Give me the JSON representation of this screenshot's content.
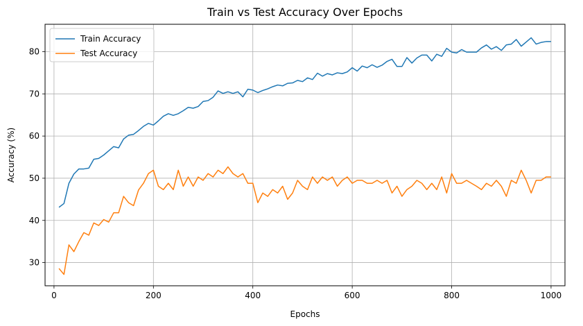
{
  "chart_data": {
    "type": "line",
    "title": "Train vs Test Accuracy Over Epochs",
    "xlabel": "Epochs",
    "ylabel": "Accuracy (%)",
    "xlim": [
      -18,
      1028
    ],
    "ylim": [
      24.5,
      86.5
    ],
    "xticks": [
      0,
      200,
      400,
      600,
      800,
      1000
    ],
    "yticks": [
      30,
      40,
      50,
      60,
      70,
      80
    ],
    "grid": true,
    "legend_position": "upper-left",
    "x": [
      10,
      20,
      30,
      40,
      50,
      60,
      70,
      80,
      90,
      100,
      110,
      120,
      130,
      140,
      150,
      160,
      170,
      180,
      190,
      200,
      210,
      220,
      230,
      240,
      250,
      260,
      270,
      280,
      290,
      300,
      310,
      320,
      330,
      340,
      350,
      360,
      370,
      380,
      390,
      400,
      410,
      420,
      430,
      440,
      450,
      460,
      470,
      480,
      490,
      500,
      510,
      520,
      530,
      540,
      550,
      560,
      570,
      580,
      590,
      600,
      610,
      620,
      630,
      640,
      650,
      660,
      670,
      680,
      690,
      700,
      710,
      720,
      730,
      740,
      750,
      760,
      770,
      780,
      790,
      800,
      810,
      820,
      830,
      840,
      850,
      860,
      870,
      880,
      890,
      900,
      910,
      920,
      930,
      940,
      950,
      960,
      970,
      980,
      990,
      1000
    ],
    "series": [
      {
        "name": "Train Accuracy",
        "color": "#1f77b4",
        "values": [
          43.1,
          44.0,
          48.8,
          51.0,
          52.2,
          52.2,
          52.4,
          54.5,
          54.7,
          55.5,
          56.5,
          57.5,
          57.2,
          59.3,
          60.2,
          60.4,
          61.3,
          62.3,
          63.0,
          62.6,
          63.6,
          64.7,
          65.3,
          64.9,
          65.3,
          66.0,
          66.8,
          66.6,
          67.0,
          68.2,
          68.4,
          69.2,
          70.7,
          70.1,
          70.5,
          70.1,
          70.5,
          69.3,
          71.1,
          70.9,
          70.3,
          70.8,
          71.2,
          71.7,
          72.1,
          71.9,
          72.5,
          72.6,
          73.2,
          72.9,
          73.8,
          73.4,
          74.9,
          74.2,
          74.8,
          74.5,
          75.0,
          74.8,
          75.2,
          76.2,
          75.4,
          76.6,
          76.2,
          76.9,
          76.3,
          76.8,
          77.7,
          78.2,
          76.5,
          76.5,
          78.6,
          77.3,
          78.5,
          79.2,
          79.2,
          77.8,
          79.4,
          78.9,
          80.8,
          79.9,
          79.7,
          80.5,
          79.9,
          79.9,
          79.9,
          80.9,
          81.6,
          80.6,
          81.2,
          80.3,
          81.6,
          81.8,
          82.9,
          81.3,
          82.3,
          83.3,
          81.8,
          82.2,
          82.4,
          82.4
        ]
      },
      {
        "name": "Test Accuracy",
        "color": "#ff7f0e",
        "values": [
          28.6,
          27.2,
          34.2,
          32.6,
          35.0,
          37.1,
          36.5,
          39.4,
          38.8,
          40.2,
          39.6,
          41.8,
          41.8,
          45.7,
          44.2,
          43.5,
          47.2,
          48.8,
          51.1,
          51.9,
          48.1,
          47.3,
          48.8,
          47.3,
          51.9,
          48.1,
          50.3,
          48.1,
          50.3,
          49.5,
          51.1,
          50.3,
          51.9,
          51.1,
          52.7,
          51.1,
          50.3,
          51.1,
          48.8,
          48.8,
          44.2,
          46.5,
          45.7,
          47.3,
          46.5,
          48.1,
          45.0,
          46.5,
          49.5,
          48.1,
          47.3,
          50.3,
          48.8,
          50.3,
          49.5,
          50.3,
          48.1,
          49.5,
          50.3,
          48.8,
          49.5,
          49.5,
          48.8,
          48.8,
          49.5,
          48.8,
          49.5,
          46.5,
          48.1,
          45.7,
          47.3,
          48.1,
          49.5,
          48.8,
          47.3,
          48.8,
          47.3,
          50.3,
          46.5,
          51.1,
          48.8,
          48.8,
          49.5,
          48.8,
          48.1,
          47.3,
          48.8,
          48.1,
          49.5,
          48.1,
          45.7,
          49.5,
          48.8,
          51.9,
          49.5,
          46.5,
          49.5,
          49.5,
          50.3,
          50.3
        ]
      }
    ]
  }
}
